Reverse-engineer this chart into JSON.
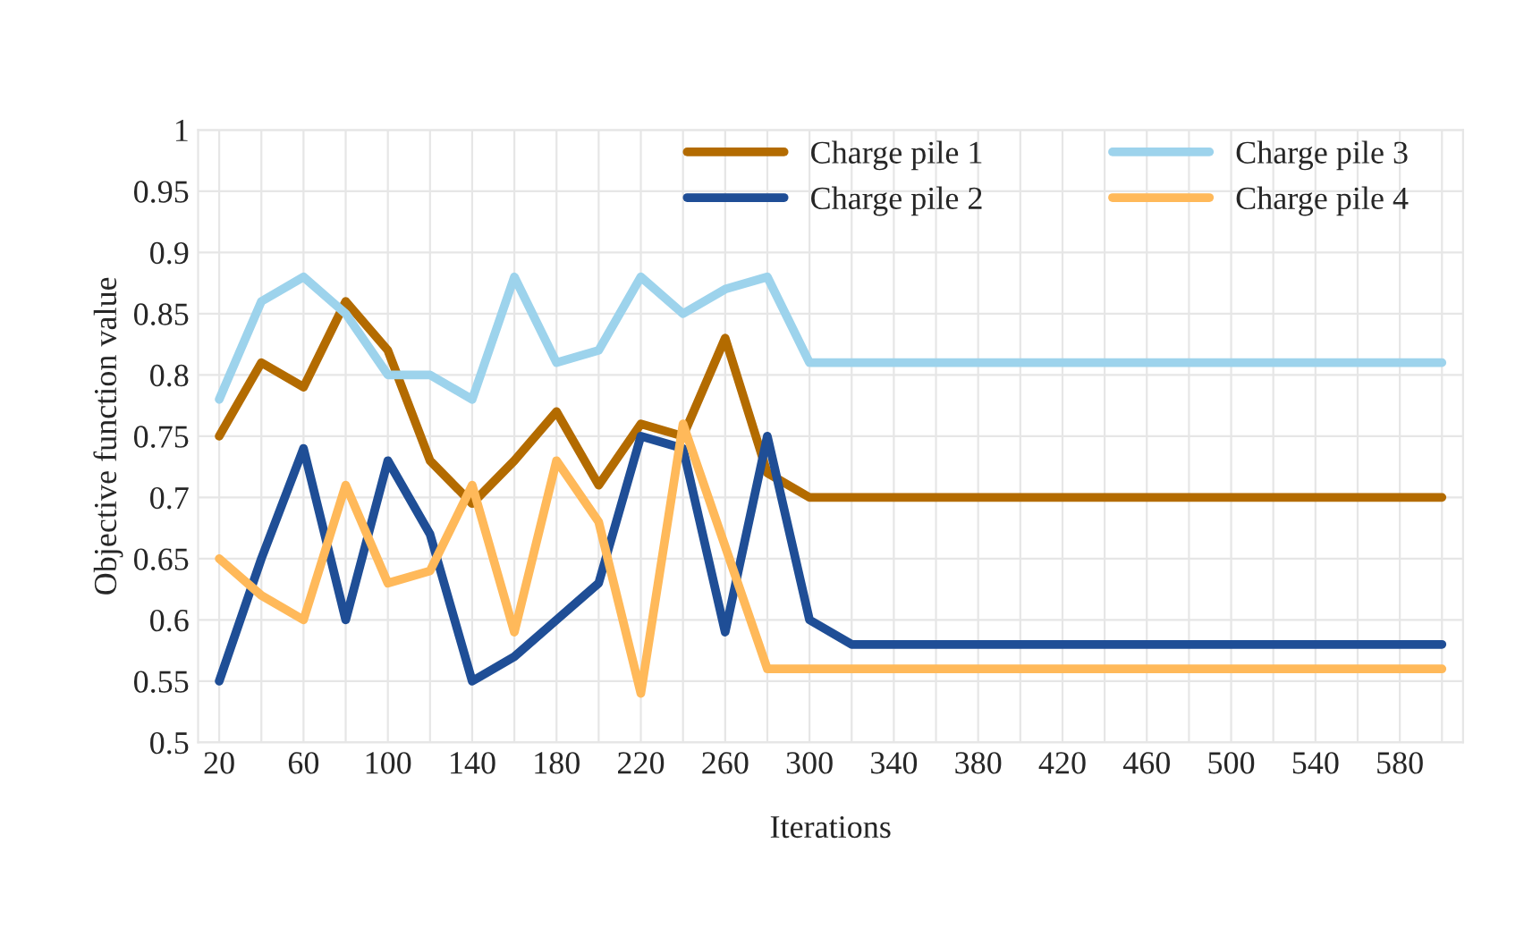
{
  "chart_data": {
    "type": "line",
    "xlabel": "Iterations",
    "ylabel": "Objective function value",
    "categories": [
      "20",
      null,
      "60",
      null,
      "100",
      null,
      "140",
      null,
      "180",
      null,
      "220",
      null,
      "260",
      null,
      "300",
      null,
      "340",
      null,
      "380",
      null,
      "420",
      null,
      "460",
      null,
      "500",
      null,
      "540",
      null,
      "580",
      null
    ],
    "series": [
      {
        "name": "Charge pile 1",
        "color": "#b36b00",
        "values": [
          0.75,
          0.81,
          0.79,
          0.86,
          0.82,
          0.73,
          0.695,
          0.73,
          0.77,
          0.71,
          0.76,
          0.75,
          0.83,
          0.72,
          0.7,
          0.7,
          0.7,
          0.7,
          0.7,
          0.7,
          0.7,
          0.7,
          0.7,
          0.7,
          0.7,
          0.7,
          0.7,
          0.7,
          0.7,
          0.7
        ]
      },
      {
        "name": "Charge pile 2",
        "color": "#1f4e96",
        "values": [
          0.55,
          0.65,
          0.74,
          0.6,
          0.73,
          0.67,
          0.55,
          0.57,
          0.6,
          0.63,
          0.75,
          0.74,
          0.59,
          0.75,
          0.6,
          0.58,
          0.58,
          0.58,
          0.58,
          0.58,
          0.58,
          0.58,
          0.58,
          0.58,
          0.58,
          0.58,
          0.58,
          0.58,
          0.58,
          0.58
        ]
      },
      {
        "name": "Charge pile 3",
        "color": "#9dd3ec",
        "values": [
          0.78,
          0.86,
          0.88,
          0.85,
          0.8,
          0.8,
          0.78,
          0.88,
          0.81,
          0.82,
          0.88,
          0.85,
          0.87,
          0.88,
          0.81,
          0.81,
          0.81,
          0.81,
          0.81,
          0.81,
          0.81,
          0.81,
          0.81,
          0.81,
          0.81,
          0.81,
          0.81,
          0.81,
          0.81,
          0.81
        ]
      },
      {
        "name": "Charge pile 4",
        "color": "#ffb95a",
        "values": [
          0.65,
          0.62,
          0.6,
          0.71,
          0.63,
          0.64,
          0.71,
          0.59,
          0.73,
          0.68,
          0.54,
          0.76,
          0.66,
          0.56,
          0.56,
          0.56,
          0.56,
          0.56,
          0.56,
          0.56,
          0.56,
          0.56,
          0.56,
          0.56,
          0.56,
          0.56,
          0.56,
          0.56,
          0.56,
          0.56
        ]
      }
    ],
    "ylim": [
      0.5,
      1
    ],
    "yticks": [
      0.5,
      0.55,
      0.6,
      0.65,
      0.7,
      0.75,
      0.8,
      0.85,
      0.9,
      0.95,
      1
    ],
    "grid": true,
    "legend": "top right",
    "marker": "none",
    "line_style": "solid"
  }
}
